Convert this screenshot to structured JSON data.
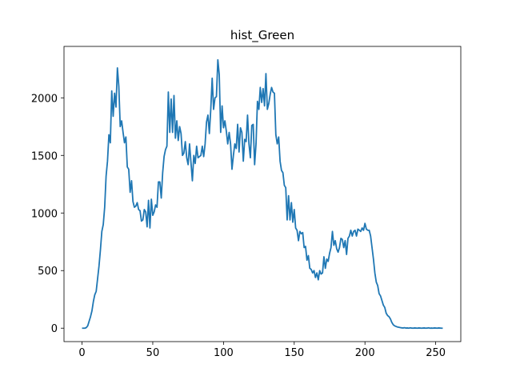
{
  "chart_data": {
    "type": "line",
    "title": "hist_Green",
    "x": [
      0,
      1,
      2,
      3,
      4,
      5,
      6,
      7,
      8,
      9,
      10,
      11,
      12,
      13,
      14,
      15,
      16,
      17,
      18,
      19,
      20,
      21,
      22,
      23,
      24,
      25,
      26,
      27,
      28,
      29,
      30,
      31,
      32,
      33,
      34,
      35,
      36,
      37,
      38,
      39,
      40,
      41,
      42,
      43,
      44,
      45,
      46,
      47,
      48,
      49,
      50,
      51,
      52,
      53,
      54,
      55,
      56,
      57,
      58,
      59,
      60,
      61,
      62,
      63,
      64,
      65,
      66,
      67,
      68,
      69,
      70,
      71,
      72,
      73,
      74,
      75,
      76,
      77,
      78,
      79,
      80,
      81,
      82,
      83,
      84,
      85,
      86,
      87,
      88,
      89,
      90,
      91,
      92,
      93,
      94,
      95,
      96,
      97,
      98,
      99,
      100,
      101,
      102,
      103,
      104,
      105,
      106,
      107,
      108,
      109,
      110,
      111,
      112,
      113,
      114,
      115,
      116,
      117,
      118,
      119,
      120,
      121,
      122,
      123,
      124,
      125,
      126,
      127,
      128,
      129,
      130,
      131,
      132,
      133,
      134,
      135,
      136,
      137,
      138,
      139,
      140,
      141,
      142,
      143,
      144,
      145,
      146,
      147,
      148,
      149,
      150,
      151,
      152,
      153,
      154,
      155,
      156,
      157,
      158,
      159,
      160,
      161,
      162,
      163,
      164,
      165,
      166,
      167,
      168,
      169,
      170,
      171,
      172,
      173,
      174,
      175,
      176,
      177,
      178,
      179,
      180,
      181,
      182,
      183,
      184,
      185,
      186,
      187,
      188,
      189,
      190,
      191,
      192,
      193,
      194,
      195,
      196,
      197,
      198,
      199,
      200,
      201,
      202,
      203,
      204,
      205,
      206,
      207,
      208,
      209,
      210,
      211,
      212,
      213,
      214,
      215,
      216,
      217,
      218,
      219,
      220,
      221,
      222,
      223,
      224,
      225,
      226,
      227,
      228,
      229,
      230,
      231,
      232,
      233,
      234,
      235,
      236,
      237,
      238,
      239,
      240,
      241,
      242,
      243,
      244,
      245,
      246,
      247,
      248,
      249,
      250,
      251,
      252,
      253,
      254,
      255
    ],
    "values": [
      0,
      0,
      0,
      5,
      20,
      60,
      100,
      150,
      230,
      290,
      320,
      430,
      540,
      680,
      840,
      900,
      1050,
      1320,
      1450,
      1680,
      1610,
      2060,
      1840,
      2040,
      1920,
      2260,
      2100,
      1750,
      1800,
      1700,
      1610,
      1660,
      1400,
      1380,
      1180,
      1280,
      1100,
      1050,
      1060,
      1090,
      1030,
      1020,
      930,
      940,
      1030,
      1010,
      880,
      1110,
      870,
      1120,
      980,
      1010,
      1070,
      1050,
      1270,
      1270,
      1130,
      1350,
      1490,
      1550,
      1580,
      2050,
      1700,
      1990,
      1700,
      2020,
      1650,
      1800,
      1630,
      1750,
      1690,
      1500,
      1520,
      1620,
      1480,
      1420,
      1600,
      1440,
      1280,
      1500,
      1430,
      1580,
      1480,
      1490,
      1500,
      1580,
      1490,
      1600,
      1790,
      1850,
      1690,
      1900,
      2170,
      1900,
      2000,
      2010,
      2330,
      2200,
      1700,
      1930,
      1740,
      1800,
      1710,
      1600,
      1700,
      1600,
      1380,
      1500,
      1600,
      1560,
      1770,
      1530,
      1740,
      1700,
      1450,
      1640,
      1620,
      1850,
      1600,
      1480,
      1760,
      1770,
      1420,
      1600,
      1970,
      1900,
      2090,
      1960,
      2080,
      1930,
      2210,
      1900,
      1950,
      2030,
      2090,
      2050,
      2040,
      1680,
      1600,
      1660,
      1450,
      1370,
      1350,
      1240,
      1220,
      940,
      1150,
      940,
      1090,
      920,
      1030,
      870,
      850,
      760,
      840,
      820,
      830,
      700,
      710,
      590,
      630,
      520,
      510,
      480,
      500,
      440,
      480,
      420,
      500,
      470,
      480,
      620,
      520,
      600,
      580,
      650,
      700,
      840,
      720,
      760,
      690,
      660,
      700,
      780,
      770,
      700,
      760,
      640,
      780,
      800,
      850,
      800,
      840,
      850,
      800,
      860,
      850,
      840,
      870,
      850,
      910,
      860,
      850,
      850,
      800,
      700,
      600,
      480,
      400,
      370,
      300,
      280,
      240,
      200,
      180,
      130,
      110,
      100,
      80,
      50,
      30,
      20,
      15,
      10,
      8,
      5,
      3,
      2,
      4,
      1,
      2,
      0,
      3,
      1,
      0,
      2,
      1,
      0,
      2,
      1,
      0,
      1,
      2,
      0,
      1,
      3,
      0,
      1,
      0,
      2,
      1,
      0,
      2,
      1,
      0,
      0
    ],
    "color": "#1f77b4",
    "xlim": [
      -12.75,
      267.75
    ],
    "xticks": [
      0,
      50,
      100,
      150,
      200,
      250
    ],
    "ylim": [
      -116.5,
      2446.5
    ],
    "yticks": [
      0,
      500,
      1000,
      1500,
      2000
    ]
  }
}
